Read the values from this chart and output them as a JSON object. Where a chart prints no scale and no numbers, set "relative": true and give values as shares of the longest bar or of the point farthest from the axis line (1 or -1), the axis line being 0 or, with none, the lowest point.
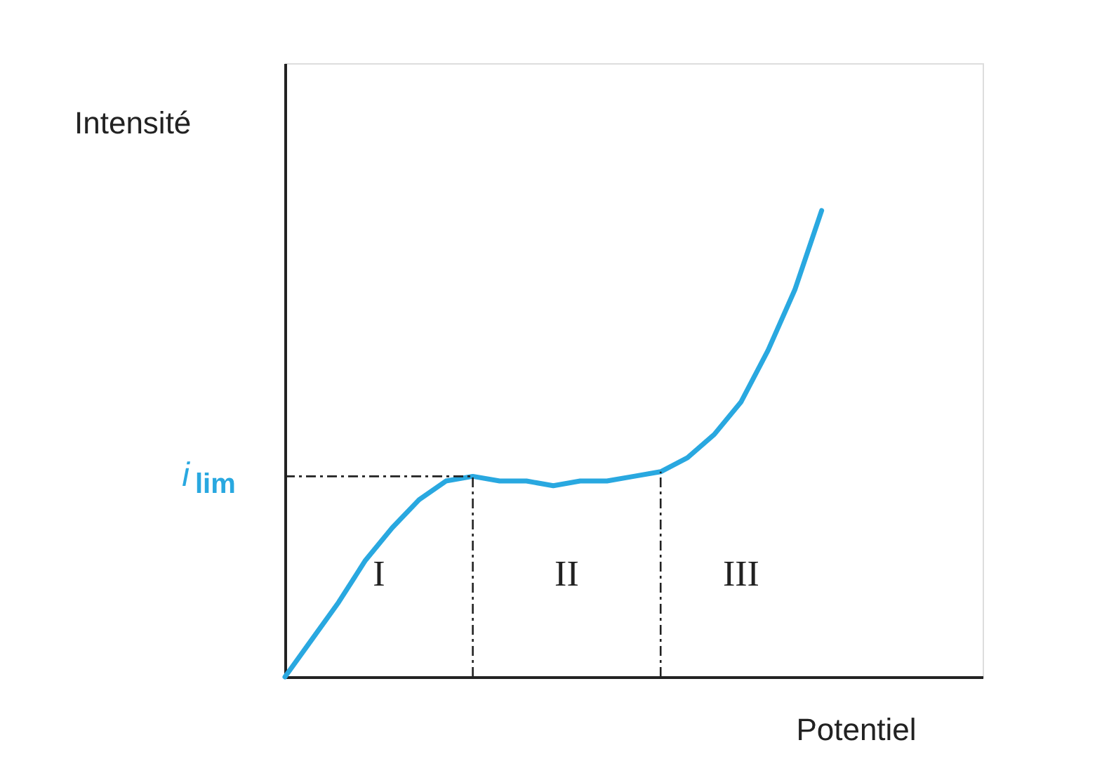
{
  "chart_data": {
    "type": "line",
    "relative": true,
    "xlabel": "Potentiel",
    "ylabel": "Intensité",
    "categories": [
      null,
      null,
      null,
      null,
      null,
      null,
      null,
      null,
      null,
      null,
      null,
      null,
      null,
      null,
      null,
      null,
      null,
      null,
      null,
      null,
      null
    ],
    "series": [
      {
        "color": "#29a8e0",
        "values": [
          0,
          0.08,
          0.16,
          0.25,
          0.32,
          0.38,
          0.42,
          0.43,
          0.42,
          0.42,
          0.41,
          0.42,
          0.42,
          0.43,
          0.44,
          0.47,
          0.52,
          0.59,
          0.7,
          0.83,
          1
        ]
      }
    ],
    "ref_lines": [
      {
        "axis": "y",
        "value": 0.43,
        "label": "i$_{lim}$",
        "line_style": "dashed",
        "color": "#222222"
      }
    ],
    "annotations": [
      "I",
      "II",
      "III"
    ],
    "grid": false,
    "legend": false,
    "marker": "none",
    "line_style": "solid",
    "tick_labels": false
  }
}
